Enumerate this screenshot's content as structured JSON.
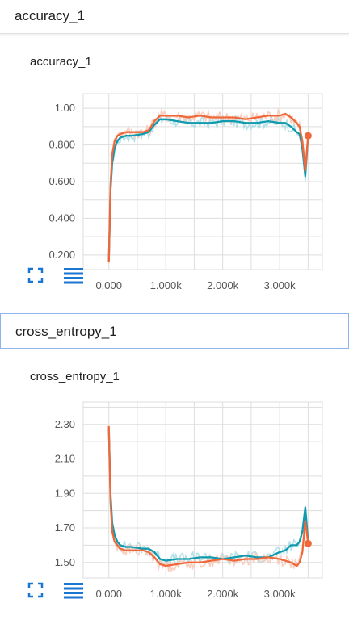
{
  "sections": [
    {
      "header": "accuracy_1",
      "card_title": "accuracy_1"
    },
    {
      "header": "cross_entropy_1",
      "card_title": "cross_entropy_1"
    }
  ],
  "colors": {
    "teal_smoothed": "#0f9aaf",
    "teal_raw": "#a8dde4",
    "orange_smoothed": "#f0683a",
    "orange_raw": "#f8c7b4",
    "grid": "#dddddd",
    "icon_blue": "#1976d2"
  },
  "icons": [
    "fit-domain-icon",
    "toggle-data-icon"
  ],
  "chart_data": [
    {
      "type": "line",
      "title": "accuracy_1",
      "x_ticks": [
        "0.000",
        "1.000k",
        "2.000k",
        "3.000k"
      ],
      "y_ticks": [
        "1.00",
        "0.800",
        "0.600",
        "0.400",
        "0.200"
      ],
      "xlim": [
        -450,
        3750
      ],
      "ylim": [
        0.12,
        1.08
      ],
      "series": [
        {
          "color_key": "teal",
          "x": [
            0,
            30,
            60,
            100,
            150,
            200,
            300,
            400,
            600,
            700,
            800,
            900,
            1000,
            1200,
            1400,
            1600,
            1800,
            2000,
            2200,
            2400,
            2600,
            2800,
            3000,
            3100,
            3200,
            3300,
            3350,
            3400,
            3450,
            3500
          ],
          "y": [
            0.16,
            0.55,
            0.7,
            0.78,
            0.82,
            0.84,
            0.85,
            0.85,
            0.86,
            0.87,
            0.91,
            0.94,
            0.94,
            0.93,
            0.92,
            0.92,
            0.92,
            0.93,
            0.93,
            0.92,
            0.92,
            0.93,
            0.92,
            0.92,
            0.9,
            0.87,
            0.86,
            0.78,
            0.63,
            0.85
          ]
        },
        {
          "color_key": "orange",
          "x": [
            0,
            30,
            60,
            100,
            150,
            200,
            300,
            400,
            600,
            700,
            800,
            900,
            1000,
            1200,
            1400,
            1600,
            1800,
            2000,
            2200,
            2400,
            2600,
            2800,
            3000,
            3100,
            3200,
            3300,
            3350,
            3400,
            3450,
            3500
          ],
          "y": [
            0.16,
            0.58,
            0.75,
            0.82,
            0.85,
            0.86,
            0.87,
            0.87,
            0.87,
            0.88,
            0.93,
            0.96,
            0.96,
            0.96,
            0.95,
            0.96,
            0.95,
            0.95,
            0.95,
            0.94,
            0.95,
            0.96,
            0.96,
            0.97,
            0.95,
            0.92,
            0.9,
            0.82,
            0.66,
            0.85
          ]
        }
      ]
    },
    {
      "type": "line",
      "title": "cross_entropy_1",
      "x_ticks": [
        "0.000",
        "1.000k",
        "2.000k",
        "3.000k"
      ],
      "y_ticks": [
        "2.30",
        "2.10",
        "1.90",
        "1.70",
        "1.50"
      ],
      "xlim": [
        -450,
        3750
      ],
      "ylim": [
        1.41,
        2.43
      ],
      "series": [
        {
          "color_key": "teal",
          "x": [
            0,
            30,
            60,
            100,
            150,
            200,
            300,
            400,
            600,
            700,
            800,
            900,
            1000,
            1200,
            1400,
            1600,
            1800,
            2000,
            2200,
            2400,
            2600,
            2800,
            3000,
            3100,
            3200,
            3300,
            3350,
            3400,
            3450,
            3500
          ],
          "y": [
            2.28,
            1.9,
            1.73,
            1.66,
            1.62,
            1.6,
            1.59,
            1.59,
            1.58,
            1.58,
            1.56,
            1.52,
            1.51,
            1.52,
            1.52,
            1.53,
            1.53,
            1.52,
            1.53,
            1.54,
            1.53,
            1.53,
            1.56,
            1.57,
            1.6,
            1.6,
            1.62,
            1.68,
            1.82,
            1.62
          ]
        },
        {
          "color_key": "orange",
          "x": [
            0,
            30,
            60,
            100,
            150,
            200,
            300,
            400,
            600,
            700,
            800,
            900,
            1000,
            1200,
            1400,
            1600,
            1800,
            2000,
            2200,
            2400,
            2600,
            2800,
            3000,
            3100,
            3200,
            3300,
            3350,
            3400,
            3450,
            3500
          ],
          "y": [
            2.29,
            1.85,
            1.68,
            1.62,
            1.6,
            1.58,
            1.57,
            1.57,
            1.57,
            1.56,
            1.53,
            1.49,
            1.48,
            1.49,
            1.5,
            1.5,
            1.51,
            1.52,
            1.51,
            1.52,
            1.52,
            1.53,
            1.52,
            1.51,
            1.5,
            1.48,
            1.5,
            1.56,
            1.74,
            1.61
          ]
        }
      ]
    }
  ]
}
